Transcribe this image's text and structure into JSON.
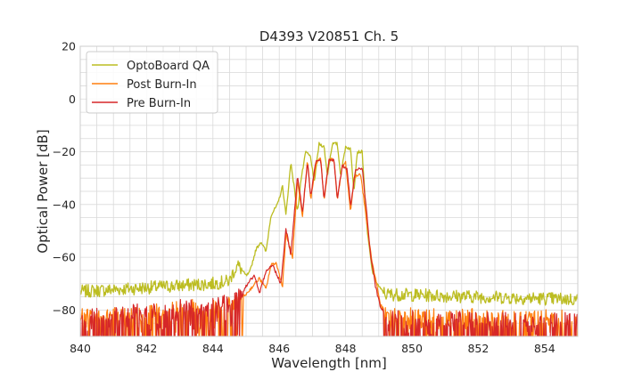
{
  "chart_data": {
    "type": "line",
    "title": "D4393 V20851 Ch. 5",
    "xlabel": "Wavelength [nm]",
    "ylabel": "Optical Power [dB]",
    "xlim": [
      840,
      855
    ],
    "ylim": [
      -90,
      20
    ],
    "xticks": [
      840,
      842,
      844,
      846,
      848,
      850,
      852,
      854
    ],
    "yticks": [
      -80,
      -60,
      -40,
      -20,
      0,
      20
    ],
    "grid": true,
    "legend_position": "top-left",
    "series": [
      {
        "name": "OptoBoard QA",
        "color": "#bcbd22",
        "x": [
          840.0,
          844.0,
          844.5,
          844.6,
          844.75,
          845.0,
          845.1,
          845.3,
          845.45,
          845.6,
          845.75,
          845.95,
          846.1,
          846.2,
          846.35,
          846.55,
          846.65,
          846.8,
          846.95,
          847.05,
          847.2,
          847.35,
          847.45,
          847.6,
          847.75,
          847.85,
          848.0,
          848.15,
          848.25,
          848.35,
          848.5,
          848.65,
          848.8,
          848.95,
          849.05,
          849.2,
          855.0
        ],
        "y": [
          -73,
          -70,
          -69,
          -66,
          -63,
          -67,
          -66,
          -57,
          -54,
          -58,
          -44,
          -40,
          -33,
          -44,
          -24,
          -43,
          -31,
          -20,
          -22,
          -32,
          -17,
          -18,
          -29,
          -17,
          -17,
          -29,
          -18,
          -19,
          -35,
          -20,
          -20,
          -50,
          -65,
          -70,
          -72,
          -74,
          -76
        ]
      },
      {
        "name": "Post Burn-In",
        "color": "#ff7f0e",
        "x": [
          840.0,
          844.5,
          845.0,
          845.2,
          845.4,
          845.6,
          845.75,
          845.9,
          846.1,
          846.2,
          846.4,
          846.55,
          846.7,
          846.85,
          846.95,
          847.1,
          847.25,
          847.35,
          847.5,
          847.65,
          847.75,
          847.9,
          848.0,
          848.15,
          848.25,
          848.45,
          848.65,
          848.8,
          848.95,
          849.05,
          849.25,
          855.0
        ],
        "y": [
          -82,
          -78,
          -74,
          -71,
          -68,
          -72,
          -63,
          -62,
          -71,
          -51,
          -60,
          -31,
          -45,
          -23,
          -38,
          -25,
          -22,
          -39,
          -23,
          -23,
          -38,
          -26,
          -24,
          -43,
          -30,
          -28,
          -48,
          -62,
          -71,
          -78,
          -82,
          -83
        ]
      },
      {
        "name": "Pre Burn-In",
        "color": "#d62728",
        "x": [
          840.0,
          844.5,
          844.9,
          845.1,
          845.25,
          845.4,
          845.6,
          845.8,
          846.05,
          846.2,
          846.35,
          846.55,
          846.7,
          846.85,
          846.95,
          847.1,
          847.25,
          847.35,
          847.5,
          847.65,
          847.75,
          847.9,
          848.05,
          848.15,
          848.3,
          848.5,
          848.65,
          848.75,
          848.9,
          849.05,
          849.3,
          855.0
        ],
        "y": [
          -83,
          -77,
          -73,
          -69,
          -67,
          -74,
          -65,
          -63,
          -70,
          -49,
          -59,
          -29,
          -43,
          -24,
          -37,
          -24,
          -23,
          -38,
          -23,
          -23,
          -38,
          -25,
          -27,
          -41,
          -27,
          -26,
          -45,
          -59,
          -71,
          -79,
          -83,
          -84
        ]
      }
    ]
  }
}
